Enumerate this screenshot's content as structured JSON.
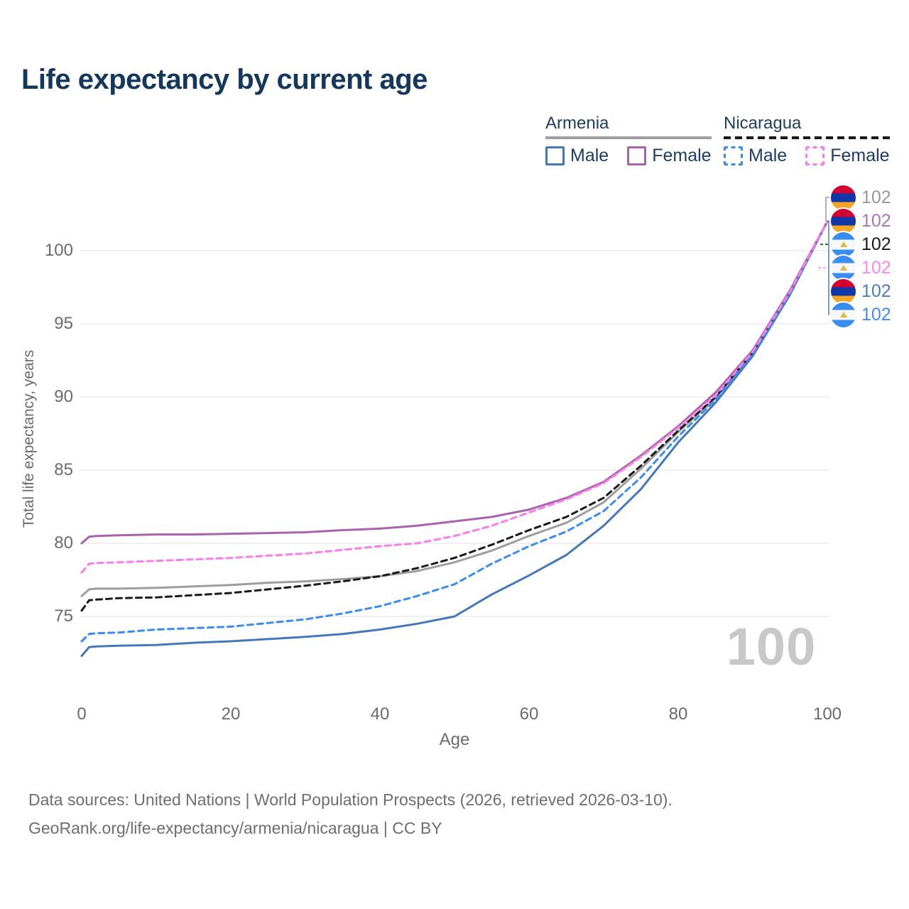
{
  "title": "Life expectancy by current age",
  "legend": {
    "groups": [
      {
        "country": "Armenia",
        "line_style": "solid",
        "items": [
          {
            "label": "Male"
          },
          {
            "label": "Female"
          }
        ]
      },
      {
        "country": "Nicaragua",
        "line_style": "dashed",
        "items": [
          {
            "label": "Male"
          },
          {
            "label": "Female"
          }
        ]
      }
    ]
  },
  "chart_data": {
    "type": "line",
    "title": "Life expectancy by current age",
    "xlabel": "Age",
    "ylabel": "Total life expectancy, years",
    "xlim": [
      0,
      100
    ],
    "ylim": [
      71,
      103
    ],
    "xticks": [
      0,
      20,
      40,
      60,
      80,
      100
    ],
    "yticks": [
      75,
      80,
      85,
      90,
      95,
      100
    ],
    "grid": "horizontal",
    "age_cursor": "100",
    "x": [
      0,
      1,
      2,
      5,
      10,
      15,
      20,
      25,
      30,
      35,
      40,
      45,
      50,
      55,
      60,
      65,
      70,
      75,
      80,
      85,
      90,
      95,
      100
    ],
    "series": [
      {
        "name": "Armenia",
        "country": "Armenia",
        "sex": "both",
        "line_style": "solid",
        "color": "#9e9e9e",
        "values": [
          76.4,
          76.85,
          76.9,
          76.9,
          76.95,
          77.05,
          77.15,
          77.3,
          77.4,
          77.55,
          77.75,
          78.1,
          78.7,
          79.5,
          80.5,
          81.4,
          82.8,
          85.1,
          87.6,
          89.9,
          93.0,
          97.1,
          102
        ]
      },
      {
        "name": "Nicaragua",
        "country": "Nicaragua",
        "sex": "both",
        "line_style": "dashed",
        "color": "#1a1a1a",
        "values": [
          75.4,
          76.1,
          76.15,
          76.25,
          76.3,
          76.45,
          76.6,
          76.85,
          77.1,
          77.4,
          77.75,
          78.3,
          79.0,
          79.9,
          80.9,
          81.8,
          83.1,
          85.3,
          87.7,
          90.0,
          93.05,
          97.15,
          102
        ]
      },
      {
        "name": "Armenia Male",
        "country": "Armenia",
        "sex": "male",
        "line_style": "solid",
        "color": "#4578ba",
        "values": [
          72.3,
          72.9,
          72.95,
          73.0,
          73.05,
          73.2,
          73.3,
          73.45,
          73.6,
          73.8,
          74.1,
          74.5,
          75.0,
          76.5,
          77.8,
          79.2,
          81.2,
          83.7,
          86.9,
          89.6,
          92.8,
          97.0,
          102
        ]
      },
      {
        "name": "Nicaragua Male",
        "country": "Nicaragua",
        "sex": "male",
        "line_style": "dashed",
        "color": "#3a8df0",
        "values": [
          73.3,
          73.8,
          73.85,
          73.9,
          74.1,
          74.2,
          74.3,
          74.55,
          74.8,
          75.2,
          75.7,
          76.4,
          77.2,
          78.6,
          79.8,
          80.8,
          82.2,
          84.5,
          87.3,
          89.8,
          92.9,
          97.05,
          102
        ]
      },
      {
        "name": "Armenia Female",
        "country": "Armenia",
        "sex": "female",
        "line_style": "solid",
        "color": "#a963ad",
        "values": [
          80.0,
          80.45,
          80.5,
          80.55,
          80.6,
          80.6,
          80.65,
          80.7,
          80.75,
          80.9,
          81.0,
          81.2,
          81.5,
          81.8,
          82.3,
          83.1,
          84.2,
          86.0,
          88.0,
          90.3,
          93.2,
          97.3,
          102
        ]
      },
      {
        "name": "Nicaragua Female",
        "country": "Nicaragua",
        "sex": "female",
        "line_style": "dashed",
        "color": "#fb7ee8",
        "values": [
          78.0,
          78.6,
          78.65,
          78.7,
          78.8,
          78.9,
          79.0,
          79.15,
          79.3,
          79.55,
          79.8,
          80.0,
          80.5,
          81.2,
          82.1,
          83.0,
          84.1,
          85.9,
          87.9,
          90.1,
          93.1,
          97.2,
          102
        ]
      }
    ],
    "end_labels": [
      {
        "series": "Armenia",
        "flag": "armenia",
        "value": "102",
        "color": "#999999"
      },
      {
        "series": "Armenia Female",
        "flag": "armenia",
        "value": "102",
        "color": "#ad74b5"
      },
      {
        "series": "Nicaragua",
        "flag": "nicaragua",
        "value": "102",
        "color": "#1a1a1a"
      },
      {
        "series": "Nicaragua Female",
        "flag": "nicaragua",
        "value": "102",
        "color": "#ff85ec"
      },
      {
        "series": "Armenia Male",
        "flag": "armenia",
        "value": "102",
        "color": "#4a7ec2"
      },
      {
        "series": "Nicaragua Male",
        "flag": "nicaragua",
        "value": "102",
        "color": "#3e8ef5"
      }
    ]
  },
  "colors": {
    "title_text": "#14375e",
    "legend_text": "#1d3c63",
    "axis_text": "#6b6b6b",
    "gridline": "#ececec",
    "watermark": "#c8c8c8",
    "armenia_flag_stripes": [
      "#d50032",
      "#0f37a8",
      "#f5a623"
    ],
    "nicaragua_flag_stripes": [
      "#3a8df0",
      "#f4f8fb",
      "#3a8df0"
    ]
  },
  "footer": {
    "line1": "Data sources: United Nations | World Population Prospects (2026, retrieved 2026-03-10).",
    "line2": "GeoRank.org/life-expectancy/armenia/nicaragua | CC BY"
  }
}
